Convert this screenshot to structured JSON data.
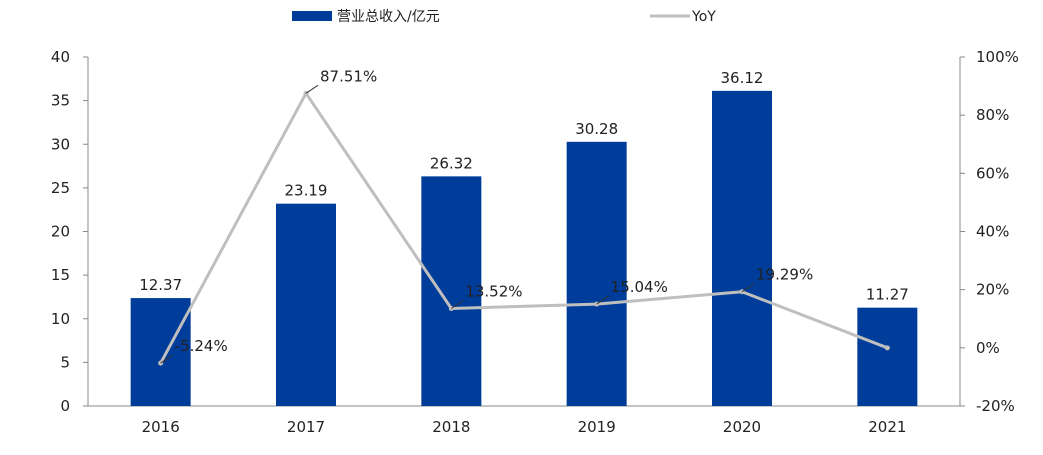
{
  "chart_data": {
    "type": "bar",
    "categories": [
      "2016",
      "2017",
      "2018",
      "2019",
      "2020",
      "2021"
    ],
    "series": [
      {
        "name": "营业总收入/亿元",
        "type": "bar",
        "axis": "left",
        "color": "#003C99",
        "values": [
          12.37,
          23.19,
          26.32,
          30.28,
          36.12,
          11.27
        ],
        "labels": [
          "12.37",
          "23.19",
          "26.32",
          "30.28",
          "36.12",
          "11.27"
        ]
      },
      {
        "name": "YoY",
        "type": "line",
        "axis": "right",
        "color": "#BFBFBF",
        "values": [
          -5.24,
          87.51,
          13.52,
          15.04,
          19.29,
          0
        ],
        "labels": [
          "-5.24%",
          "87.51%",
          "13.52%",
          "15.04%",
          "19.29%",
          ""
        ]
      }
    ],
    "y_left": {
      "min": 0,
      "max": 40,
      "ticks": [
        0,
        5,
        10,
        15,
        20,
        25,
        30,
        35,
        40
      ],
      "tick_labels": [
        "0",
        "5",
        "10",
        "15",
        "20",
        "25",
        "30",
        "35",
        "40"
      ]
    },
    "y_right": {
      "min": -20,
      "max": 100,
      "ticks": [
        -20,
        0,
        20,
        40,
        60,
        80,
        100
      ],
      "tick_labels": [
        "-20%",
        "0%",
        "20%",
        "40%",
        "60%",
        "80%",
        "100%"
      ]
    },
    "legend_position": "top",
    "grid": false
  }
}
